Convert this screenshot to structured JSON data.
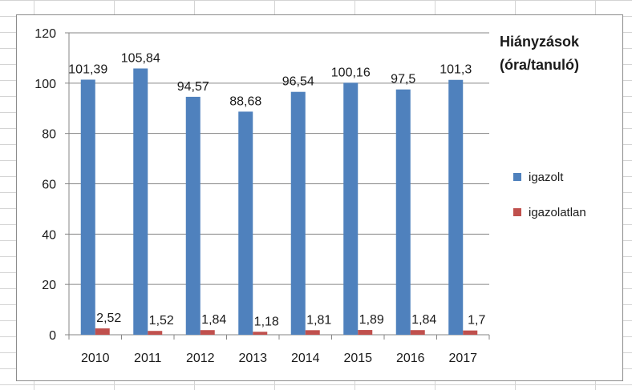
{
  "chart_data": {
    "type": "bar",
    "title_lines": [
      "Hiányzások",
      "(óra/tanuló)"
    ],
    "categories": [
      "2010",
      "2011",
      "2012",
      "2013",
      "2014",
      "2015",
      "2016",
      "2017"
    ],
    "series": [
      {
        "name": "igazolt",
        "color": "#4f81bd",
        "values": [
          101.39,
          105.84,
          94.57,
          88.68,
          96.54,
          100.16,
          97.5,
          101.3
        ],
        "labels": [
          "101,39",
          "105,84",
          "94,57",
          "88,68",
          "96,54",
          "100,16",
          "97,5",
          "101,3"
        ]
      },
      {
        "name": "igazolatlan",
        "color": "#c0504d",
        "values": [
          2.52,
          1.52,
          1.84,
          1.18,
          1.81,
          1.89,
          1.84,
          1.7
        ],
        "labels": [
          "2,52",
          "1,52",
          "1,84",
          "1,18",
          "1,81",
          "1,89",
          "1,84",
          "1,7"
        ]
      }
    ],
    "yticks": [
      "0",
      "20",
      "40",
      "60",
      "80",
      "100",
      "120"
    ],
    "ylim": [
      0,
      120
    ],
    "grid": true,
    "legend_position": "right"
  }
}
